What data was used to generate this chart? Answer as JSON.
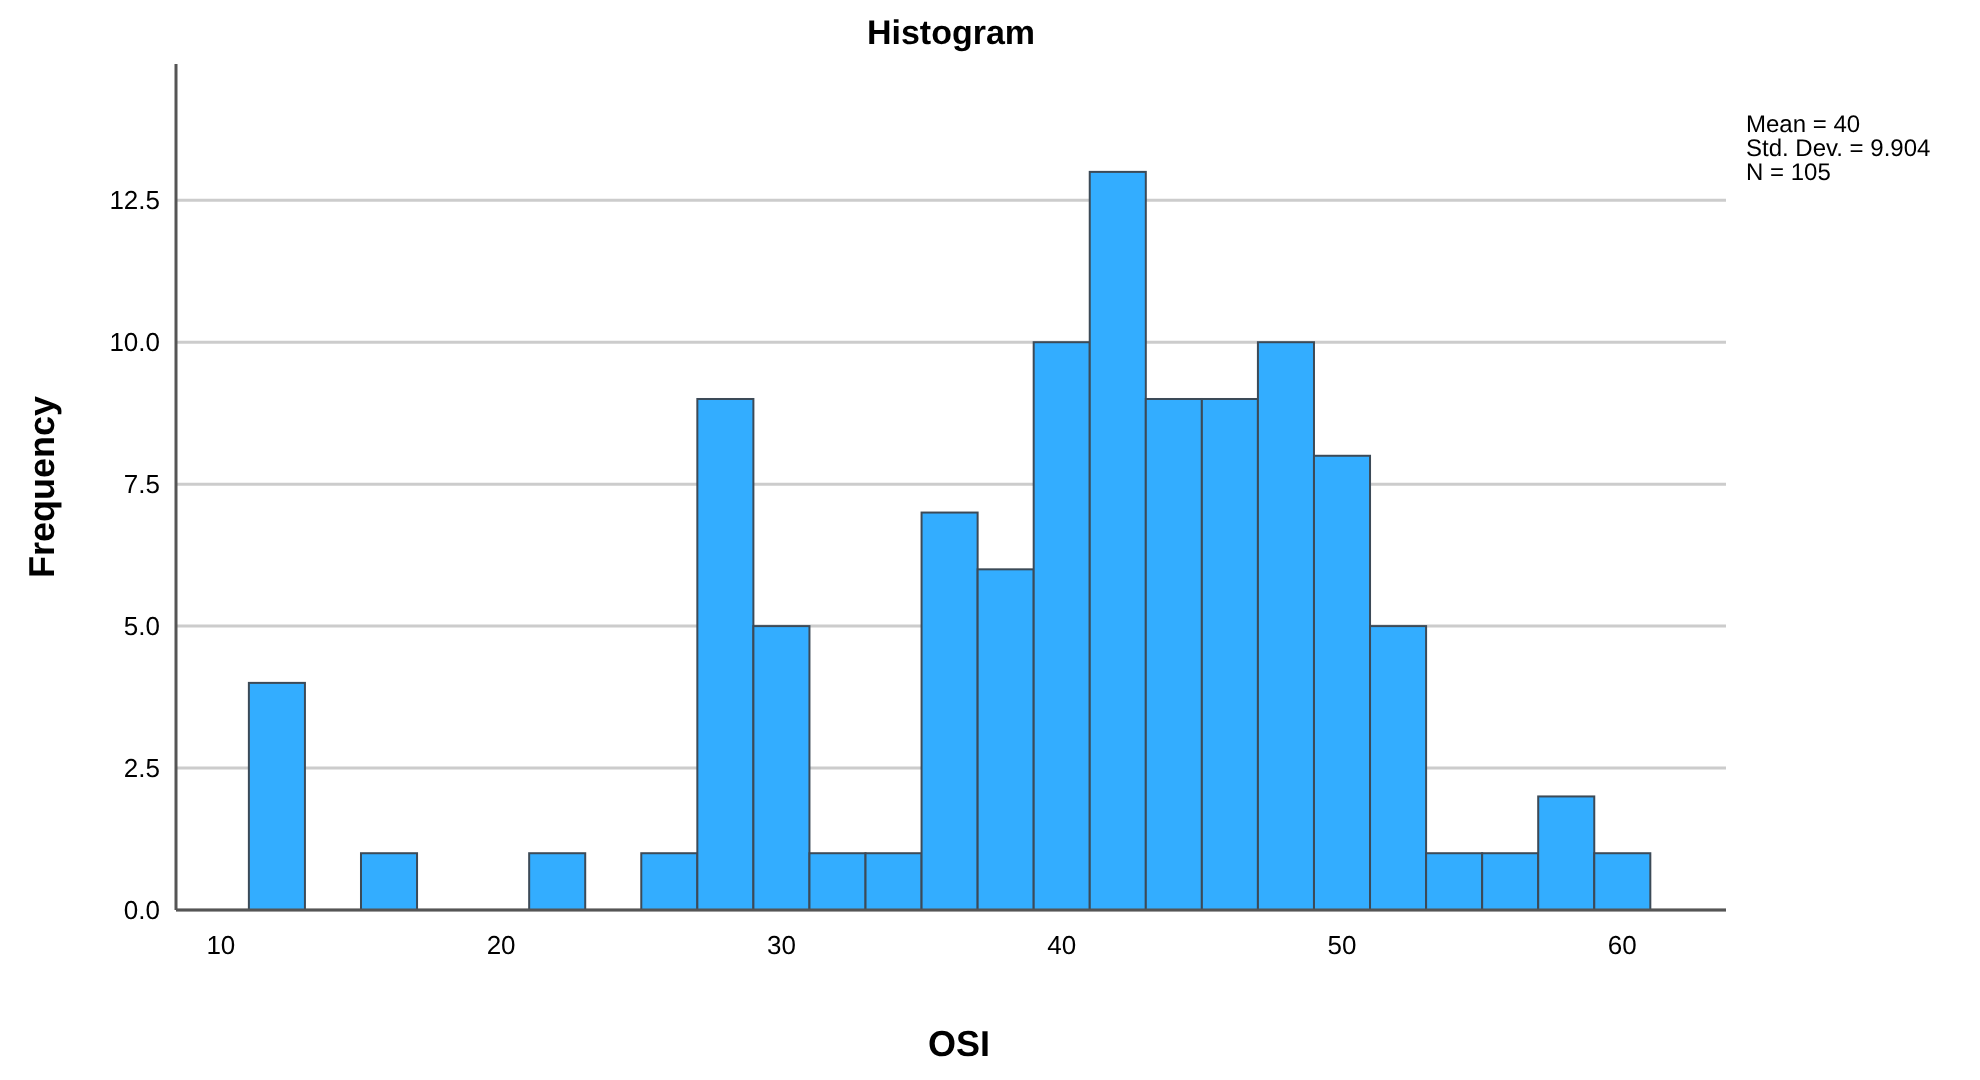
{
  "chart_data": {
    "type": "histogram",
    "title": "Histogram",
    "xlabel": "OSI",
    "ylabel": "Frequency",
    "bins": [
      11,
      13,
      15,
      17,
      19,
      21,
      23,
      25,
      27,
      29,
      31,
      33,
      35,
      37,
      39,
      41,
      43,
      45,
      47,
      49,
      51,
      53,
      55,
      57,
      59,
      61
    ],
    "values": [
      4,
      0,
      1,
      0,
      0,
      1,
      0,
      1,
      9,
      5,
      1,
      1,
      7,
      6,
      10,
      13,
      9,
      9,
      10,
      8,
      5,
      1,
      1,
      2,
      1
    ],
    "color": "#33adff",
    "xlim": [
      8.4,
      63.7
    ],
    "xticks": [
      10,
      20,
      30,
      40,
      50,
      60
    ],
    "ylim": [
      0,
      14.9
    ],
    "yticks": [
      {
        "value": 0,
        "label": "0.0"
      },
      {
        "value": 2.5,
        "label": "2.5"
      },
      {
        "value": 5,
        "label": "5.0"
      },
      {
        "value": 7.5,
        "label": "7.5"
      },
      {
        "value": 10,
        "label": "10.0"
      },
      {
        "value": 12.5,
        "label": "12.5"
      }
    ],
    "grid": "y",
    "annotations": [
      "Mean = 40",
      "Std. Dev. = 9.904",
      "N = 105"
    ]
  }
}
